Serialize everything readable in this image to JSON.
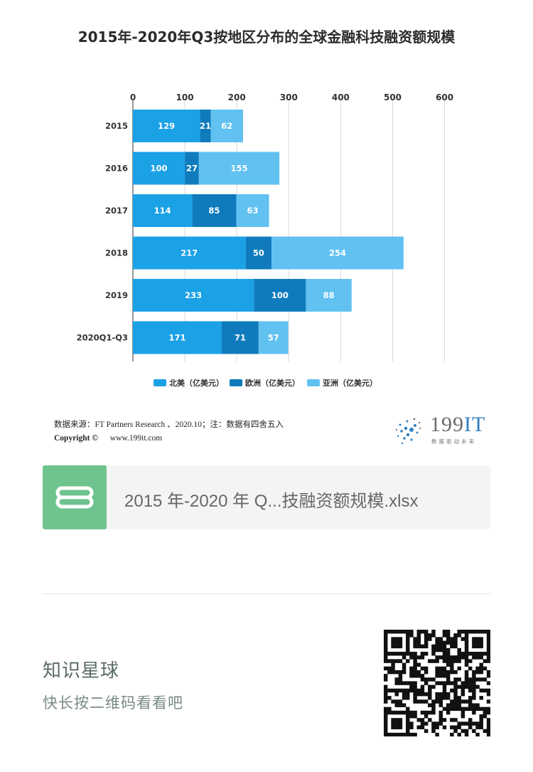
{
  "title": "2015年-2020年Q3按地区分布的全球金融科技融资额规模",
  "chart_data": {
    "type": "bar",
    "orientation": "horizontal",
    "stacked": true,
    "categories": [
      "2015",
      "2016",
      "2017",
      "2018",
      "2019",
      "2020Q1-Q3"
    ],
    "series": [
      {
        "name": "北美（亿美元）",
        "values": [
          129,
          100,
          114,
          217,
          233,
          171
        ],
        "color": "#1ba1e6"
      },
      {
        "name": "欧洲（亿美元）",
        "values": [
          21,
          27,
          85,
          50,
          100,
          71
        ],
        "color": "#0f7bbd"
      },
      {
        "name": "亚洲（亿美元）",
        "values": [
          62,
          155,
          63,
          254,
          88,
          57
        ],
        "color": "#61c1f1"
      }
    ],
    "xlim": [
      0,
      600
    ],
    "xticks": [
      0,
      100,
      200,
      300,
      400,
      500,
      600
    ],
    "x_axis_position": "top",
    "grid": true,
    "legend": "bottom"
  },
  "source_text": "数据来源：FT Partners Research 、2020.10；注：数据有四舍五入",
  "copyright_label": "Copyright ©",
  "copyright_url": "www.199it.com",
  "logo": {
    "text": "199",
    "text_accent": "IT",
    "tagline": "数据驱动未来"
  },
  "attachment": {
    "filename": "2015 年-2020 年 Q...技融资额规模.xlsx",
    "icon": "s-file-icon"
  },
  "planet": {
    "title": "知识星球",
    "hint": "快长按二维码看看吧"
  },
  "qr": {
    "icon": "qr-code-icon"
  }
}
